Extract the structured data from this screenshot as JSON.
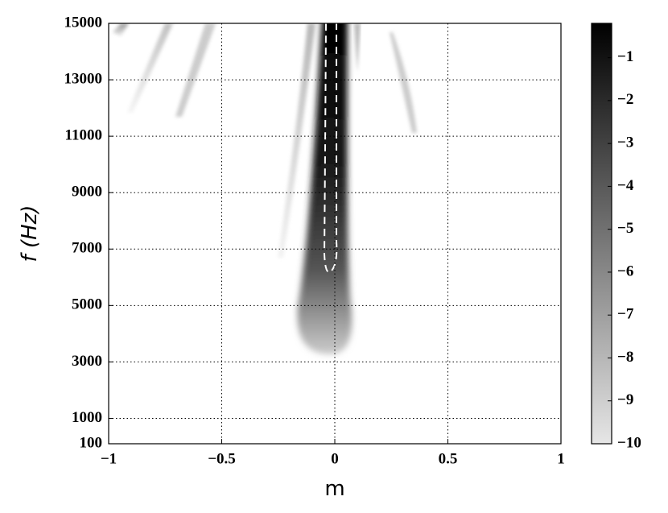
{
  "chart_data": {
    "type": "heatmap",
    "xlabel": "m",
    "ylabel": "f (Hz)",
    "xlim": [
      -1,
      1
    ],
    "xticks": [
      {
        "value": -1,
        "label": "−1"
      },
      {
        "value": -0.5,
        "label": "−0.5"
      },
      0,
      0.5,
      1
    ],
    "ylim": [
      100,
      15000
    ],
    "yticks": [
      100,
      1000,
      3000,
      5000,
      7000,
      9000,
      11000,
      13000,
      15000
    ],
    "grid": true,
    "colorbar": {
      "clim": [
        -10,
        -0.2
      ],
      "colors": [
        "#e6e6e6",
        "#000000"
      ],
      "ticks": [
        {
          "value": -1,
          "label": "−1"
        },
        {
          "value": -2,
          "label": "−2"
        },
        {
          "value": -3,
          "label": "−3"
        },
        {
          "value": -4,
          "label": "−4"
        },
        {
          "value": -5,
          "label": "−5"
        },
        {
          "value": -6,
          "label": "−6"
        },
        {
          "value": -7,
          "label": "−7"
        },
        {
          "value": -8,
          "label": "−8"
        },
        {
          "value": -9,
          "label": "−9"
        },
        {
          "value": -10,
          "label": "−10"
        }
      ]
    }
  }
}
